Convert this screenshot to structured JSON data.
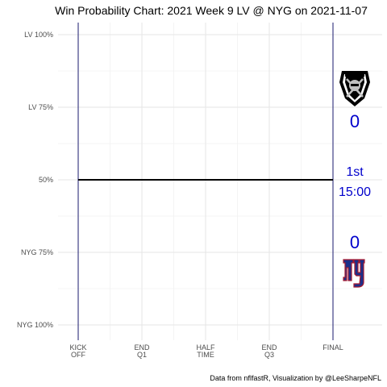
{
  "chart_data": {
    "type": "line",
    "title": "Win Probability Chart: 2021 Week 9 LV @ NYG on 2021-11-07",
    "caption": "Data from nflfastR, Visualization by @LeeSharpeNFL",
    "x_ticks": [
      {
        "pos": 0,
        "lines": [
          "KICK",
          "OFF"
        ]
      },
      {
        "pos": 1,
        "lines": [
          "END",
          "Q1"
        ]
      },
      {
        "pos": 2,
        "lines": [
          "HALF",
          "TIME"
        ]
      },
      {
        "pos": 3,
        "lines": [
          "END",
          "Q3"
        ]
      },
      {
        "pos": 4,
        "lines": [
          "FINAL"
        ]
      }
    ],
    "y_ticks": [
      {
        "value": 1.0,
        "label": "LV 100%"
      },
      {
        "value": 0.75,
        "label": "LV 75%"
      },
      {
        "value": 0.5,
        "label": "50%"
      },
      {
        "value": 0.25,
        "label": "NYG 75%"
      },
      {
        "value": 0.0,
        "label": "NYG 100%"
      }
    ],
    "ylim": [
      0,
      1
    ],
    "xlim": [
      0,
      4
    ],
    "grid": true,
    "series": [
      {
        "x": [
          0,
          4
        ],
        "y": [
          0.5,
          0.5
        ],
        "color": "#000000"
      }
    ],
    "annotations": {
      "away_team": "LV",
      "home_team": "NYG",
      "away_score": "0",
      "home_score": "0",
      "quarter": "1st",
      "clock": "15:00",
      "text_color": "#0000cc",
      "boundary_color": "#1a1a6e"
    }
  }
}
